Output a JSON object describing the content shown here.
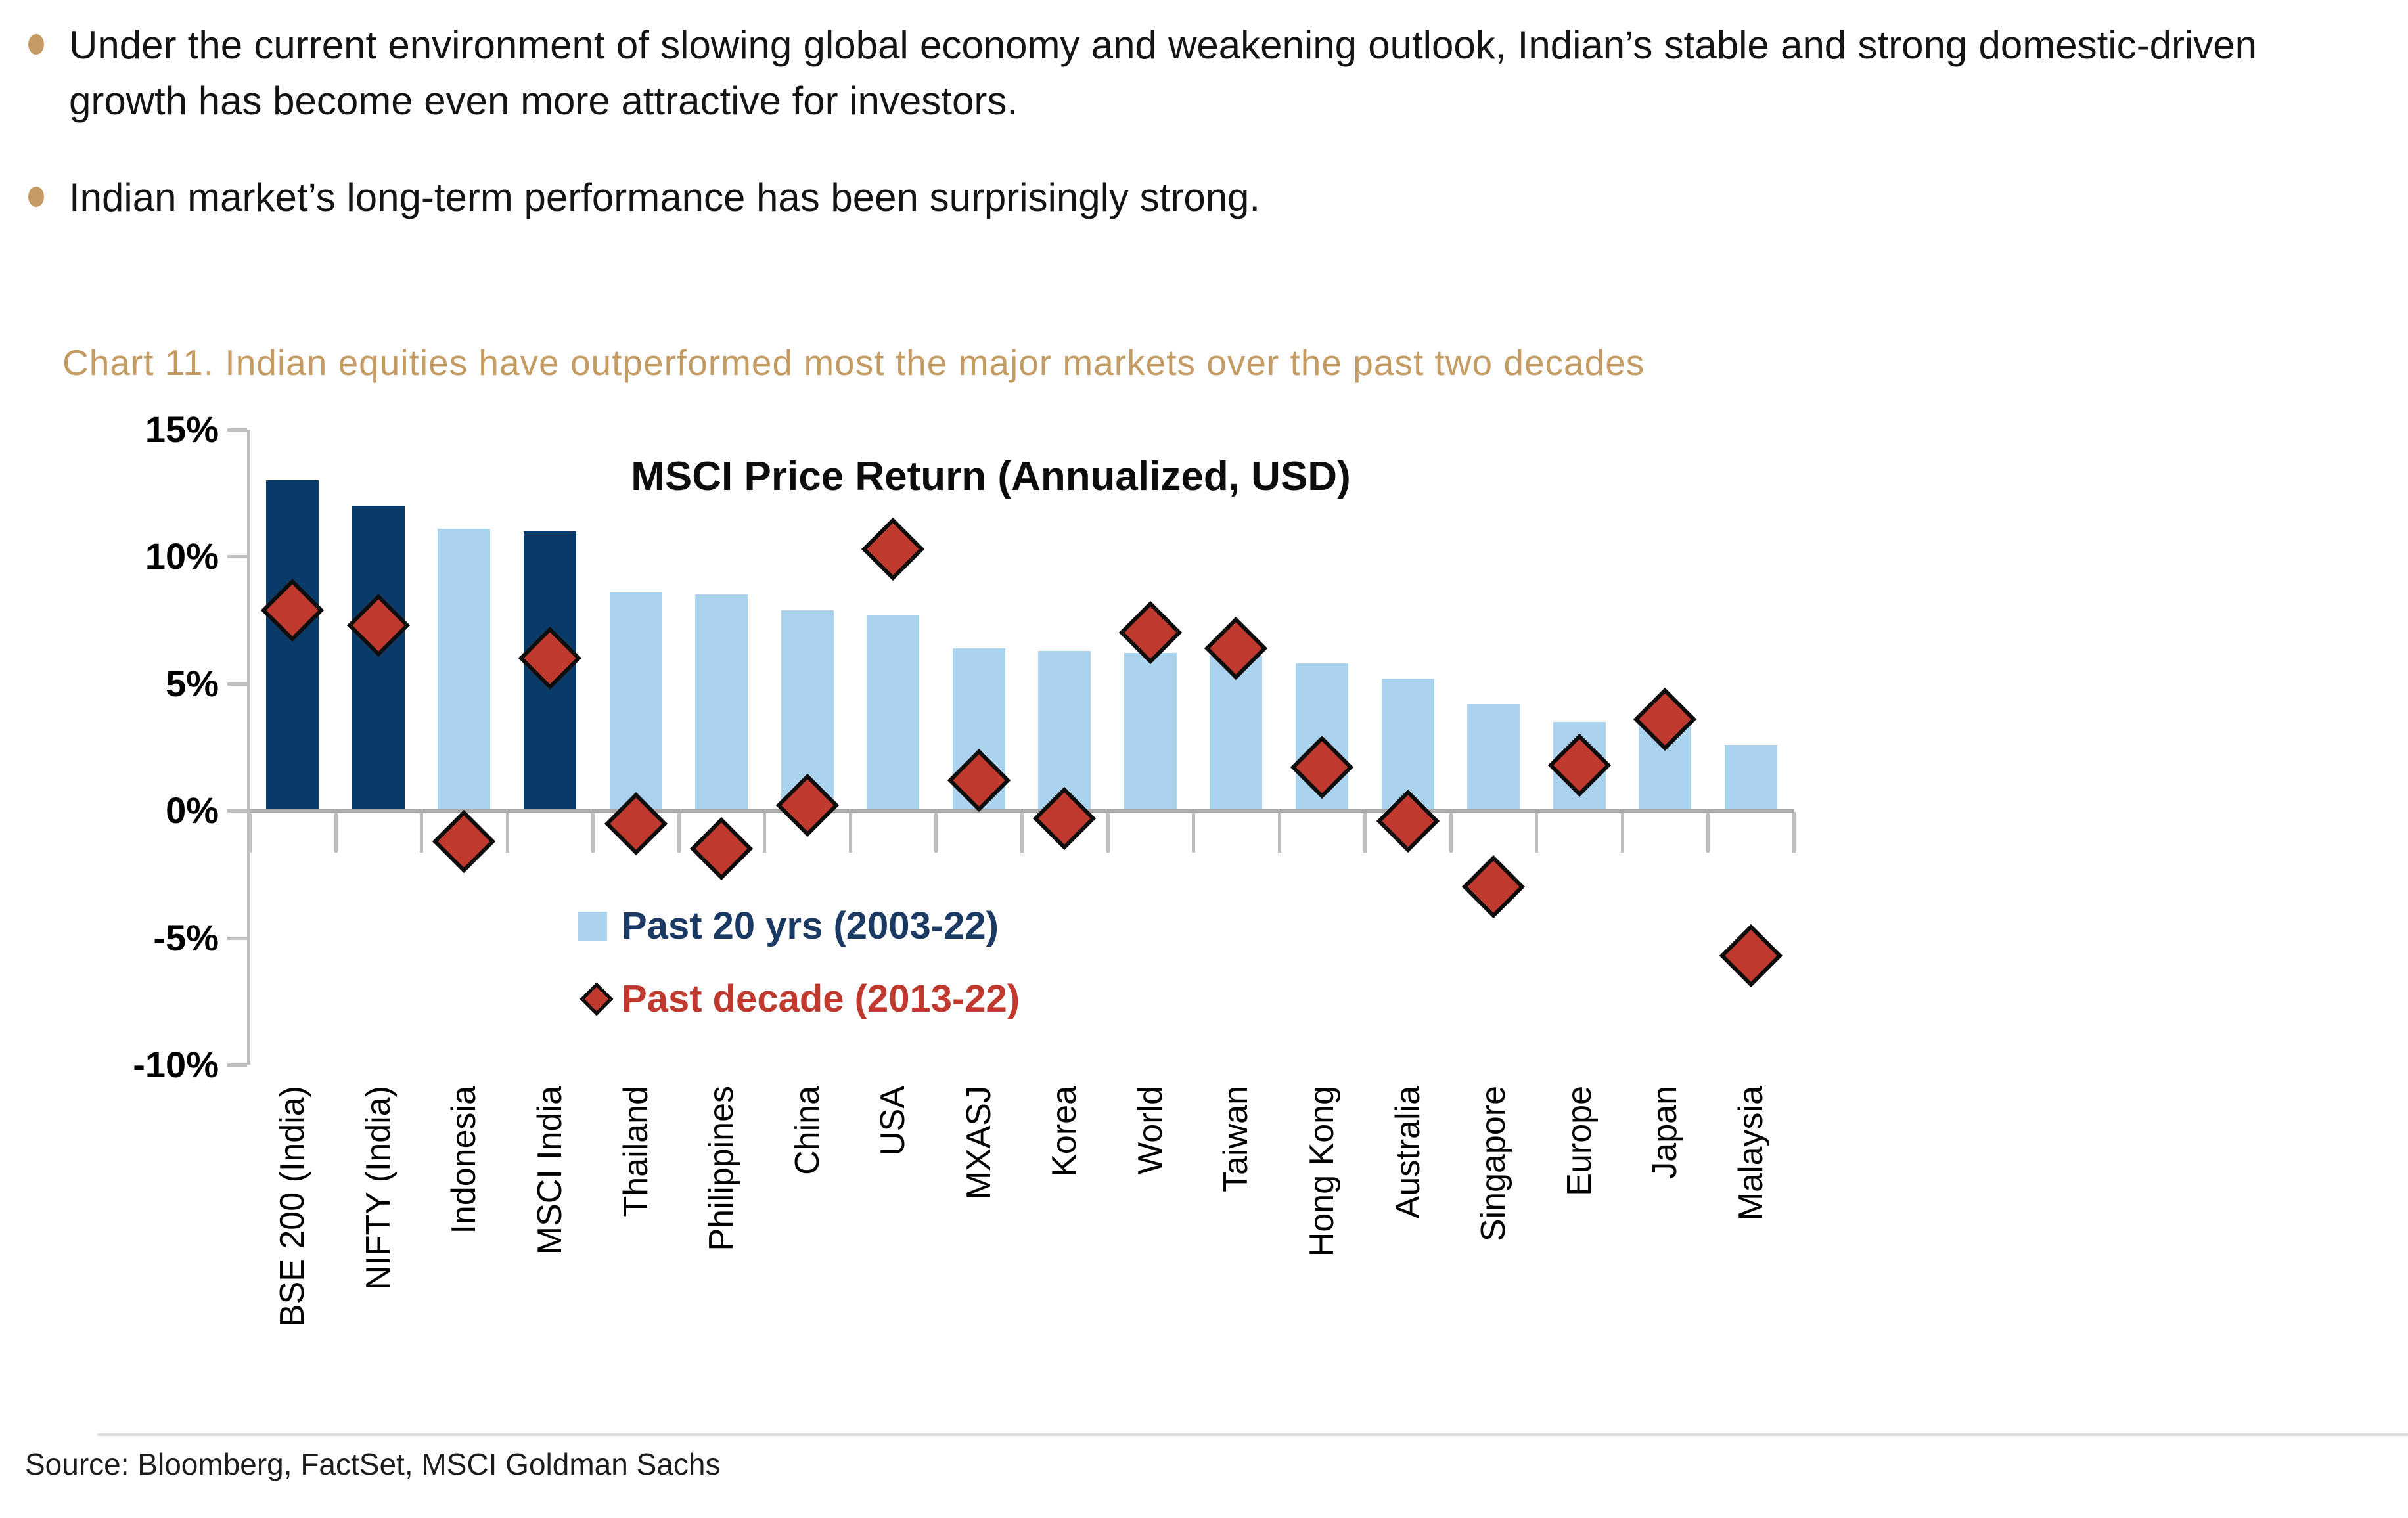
{
  "page": {
    "bullets": [
      {
        "text": "Under the current environment of slowing global economy and weakening outlook, Indian’s stable and strong domestic-driven growth has become even more attractive for investors."
      },
      {
        "text": "Indian market’s long-term performance has been surprisingly strong."
      }
    ],
    "chart_heading": "Chart 11. Indian equities have outperformed most the major markets over the past two decades",
    "source": "Source: Bloomberg, FactSet, MSCI Goldman Sachs"
  },
  "colors": {
    "accent_gold": "#c49b62",
    "bar_light_blue": "#a9d3ee",
    "bar_dark_navy": "#0a3a67",
    "diamond_red": "#c0392e",
    "legend_navy_text": "#1a3a64",
    "legend_red_text": "#c0392e",
    "axis_gray": "#bfbfbf",
    "baseline_gray": "#a9a9a9"
  },
  "chart_data": {
    "type": "bar",
    "title": "MSCI Price Return (Annualized, USD)",
    "ylabel": "",
    "xlabel": "",
    "ylim": [
      -10,
      15
    ],
    "grid": false,
    "legend_position": "inside-bottom-left",
    "y_ticks": [
      "15%",
      "10%",
      "5%",
      "0%",
      "-5%",
      "-10%"
    ],
    "y_tick_values": [
      15,
      10,
      5,
      0,
      -5,
      -10
    ],
    "categories": [
      "BSE 200 (India)",
      "NIFTY (India)",
      "Indonesia",
      "MSCI India",
      "Thailand",
      "Philippines",
      "China",
      "USA",
      "MXASJ",
      "Korea",
      "World",
      "Taiwan",
      "Hong Kong",
      "Australia",
      "Singapore",
      "Europe",
      "Japan",
      "Malaysia"
    ],
    "highlight_bar_indices": [
      0,
      1,
      3
    ],
    "series": [
      {
        "name": "Past 20 yrs (2003-22)",
        "type": "bar",
        "values": [
          13.0,
          12.0,
          11.1,
          11.0,
          8.6,
          8.5,
          7.9,
          7.7,
          6.4,
          6.3,
          6.2,
          6.1,
          5.8,
          5.2,
          4.2,
          3.5,
          3.4,
          2.6
        ]
      },
      {
        "name": "Past decade (2013-22)",
        "type": "scatter",
        "marker": "diamond",
        "values": [
          7.9,
          7.3,
          -1.2,
          6.0,
          -0.5,
          -1.5,
          0.2,
          10.3,
          1.2,
          -0.3,
          7.0,
          6.4,
          1.7,
          -0.4,
          -3.0,
          1.8,
          3.6,
          -5.7
        ]
      }
    ]
  }
}
